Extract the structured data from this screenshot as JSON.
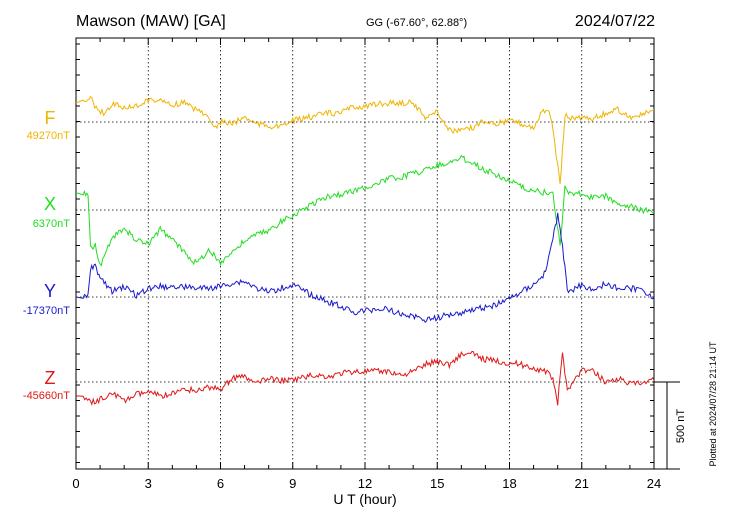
{
  "header": {
    "station": "Mawson (MAW)  [GA]",
    "coords": "GG (-67.60°,  62.88°)",
    "date": "2024/07/22"
  },
  "footer": {
    "plotted": "Plotted at 2024/07/28 21:14 UT"
  },
  "chart_data": {
    "type": "line",
    "title": "",
    "xlabel": "U T (hour)",
    "ylabel": "",
    "xlim": [
      0,
      24
    ],
    "xticks": [
      0,
      3,
      6,
      9,
      12,
      15,
      18,
      21,
      24
    ],
    "grid": true,
    "scale_bar": {
      "label": "500 nT",
      "value_nT": 500
    },
    "series": [
      {
        "name": "F",
        "baseline_label": "49270nT",
        "baseline_nT": 49270,
        "color": "#f0b400",
        "x": [
          0.3,
          0.6,
          0.9,
          1.2,
          1.5,
          2.0,
          2.5,
          3.0,
          3.5,
          4.0,
          4.5,
          5.0,
          5.5,
          5.8,
          6.0,
          6.5,
          7.0,
          7.5,
          8.0,
          8.5,
          9.0,
          9.5,
          10.0,
          10.5,
          11.0,
          11.5,
          12.0,
          12.5,
          13.0,
          13.5,
          14.0,
          14.5,
          15.0,
          15.5,
          16.0,
          16.5,
          17.0,
          17.5,
          18.0,
          18.5,
          19.0,
          19.4,
          19.7,
          20.0,
          20.1,
          20.3,
          20.6,
          21.0,
          21.5,
          22.0,
          22.5,
          23.0,
          23.5,
          24.0
        ],
        "y": [
          49380,
          49420,
          49330,
          49320,
          49380,
          49350,
          49360,
          49400,
          49390,
          49370,
          49380,
          49340,
          49310,
          49230,
          49270,
          49260,
          49300,
          49260,
          49250,
          49240,
          49280,
          49290,
          49310,
          49320,
          49320,
          49360,
          49360,
          49370,
          49380,
          49380,
          49380,
          49300,
          49330,
          49220,
          49220,
          49240,
          49280,
          49260,
          49280,
          49260,
          49240,
          49340,
          49310,
          49030,
          48900,
          49310,
          49290,
          49300,
          49290,
          49320,
          49340,
          49300,
          49310,
          49340
        ]
      },
      {
        "name": "X",
        "baseline_label": "6370nT",
        "baseline_nT": 6370,
        "color": "#22dd22",
        "x": [
          0.3,
          0.5,
          0.6,
          0.8,
          1.0,
          1.5,
          2.0,
          2.5,
          3.0,
          3.5,
          4.0,
          4.5,
          5.0,
          5.5,
          6.0,
          6.5,
          7.0,
          7.5,
          8.0,
          8.5,
          9.0,
          9.5,
          10.0,
          10.5,
          11.0,
          11.5,
          12.0,
          12.5,
          13.0,
          13.5,
          14.0,
          14.5,
          15.0,
          15.5,
          16.0,
          16.5,
          17.0,
          17.5,
          18.0,
          18.5,
          19.0,
          19.5,
          19.8,
          20.1,
          20.3,
          20.5,
          21.0,
          21.5,
          22.0,
          22.5,
          23.0,
          23.5,
          24.0
        ],
        "y": [
          6470,
          6470,
          6150,
          6170,
          6050,
          6210,
          6260,
          6200,
          6170,
          6260,
          6200,
          6130,
          6060,
          6140,
          6070,
          6130,
          6190,
          6230,
          6250,
          6300,
          6340,
          6380,
          6420,
          6450,
          6460,
          6480,
          6500,
          6520,
          6550,
          6560,
          6580,
          6600,
          6630,
          6640,
          6670,
          6640,
          6600,
          6570,
          6540,
          6500,
          6480,
          6470,
          6460,
          6170,
          6500,
          6470,
          6460,
          6440,
          6450,
          6410,
          6390,
          6370,
          6360
        ]
      },
      {
        "name": "Y",
        "baseline_label": "-17370nT",
        "baseline_nT": -17370,
        "color": "#1a1acc",
        "x": [
          0.3,
          0.5,
          0.6,
          0.8,
          1.0,
          1.5,
          2.0,
          2.5,
          3.0,
          3.5,
          4.0,
          4.5,
          5.0,
          5.5,
          6.0,
          6.5,
          7.0,
          7.5,
          8.0,
          8.5,
          9.0,
          9.5,
          10.0,
          10.5,
          11.0,
          11.5,
          12.0,
          12.5,
          13.0,
          13.5,
          14.0,
          14.5,
          15.0,
          15.5,
          16.0,
          16.5,
          17.0,
          17.5,
          18.0,
          18.5,
          19.0,
          19.5,
          19.8,
          20.0,
          20.2,
          20.4,
          20.6,
          21.0,
          21.5,
          22.0,
          22.5,
          23.0,
          23.5,
          24.0
        ],
        "y": [
          -17370,
          -17370,
          -17200,
          -17190,
          -17260,
          -17340,
          -17310,
          -17360,
          -17320,
          -17310,
          -17310,
          -17310,
          -17320,
          -17320,
          -17310,
          -17290,
          -17280,
          -17320,
          -17340,
          -17320,
          -17300,
          -17340,
          -17370,
          -17400,
          -17420,
          -17460,
          -17450,
          -17440,
          -17440,
          -17470,
          -17480,
          -17500,
          -17490,
          -17470,
          -17460,
          -17440,
          -17430,
          -17410,
          -17380,
          -17340,
          -17300,
          -17230,
          -17030,
          -16900,
          -17080,
          -17330,
          -17330,
          -17300,
          -17330,
          -17290,
          -17320,
          -17320,
          -17330,
          -17370
        ]
      },
      {
        "name": "Z",
        "baseline_label": "-45660nT",
        "baseline_nT": -45660,
        "color": "#e01818",
        "x": [
          0.3,
          0.6,
          1.0,
          1.5,
          2.0,
          2.5,
          3.0,
          3.5,
          4.0,
          4.5,
          5.0,
          5.5,
          6.0,
          6.5,
          7.0,
          7.5,
          8.0,
          8.5,
          9.0,
          9.5,
          10.0,
          10.5,
          11.0,
          11.5,
          12.0,
          12.5,
          13.0,
          13.5,
          14.0,
          14.5,
          15.0,
          15.5,
          16.0,
          16.5,
          17.0,
          17.5,
          18.0,
          18.5,
          19.0,
          19.5,
          19.8,
          20.0,
          20.2,
          20.4,
          20.7,
          21.0,
          21.5,
          22.0,
          22.5,
          23.0,
          23.5,
          24.0
        ],
        "y": [
          -45740,
          -45780,
          -45760,
          -45720,
          -45770,
          -45730,
          -45720,
          -45740,
          -45730,
          -45700,
          -45710,
          -45690,
          -45700,
          -45640,
          -45630,
          -45670,
          -45640,
          -45650,
          -45650,
          -45630,
          -45620,
          -45630,
          -45610,
          -45600,
          -45600,
          -45600,
          -45600,
          -45620,
          -45600,
          -45560,
          -45540,
          -45560,
          -45500,
          -45500,
          -45530,
          -45540,
          -45550,
          -45560,
          -45580,
          -45600,
          -45640,
          -45780,
          -45500,
          -45700,
          -45650,
          -45590,
          -45600,
          -45660,
          -45640,
          -45670,
          -45670,
          -45650
        ]
      }
    ]
  }
}
